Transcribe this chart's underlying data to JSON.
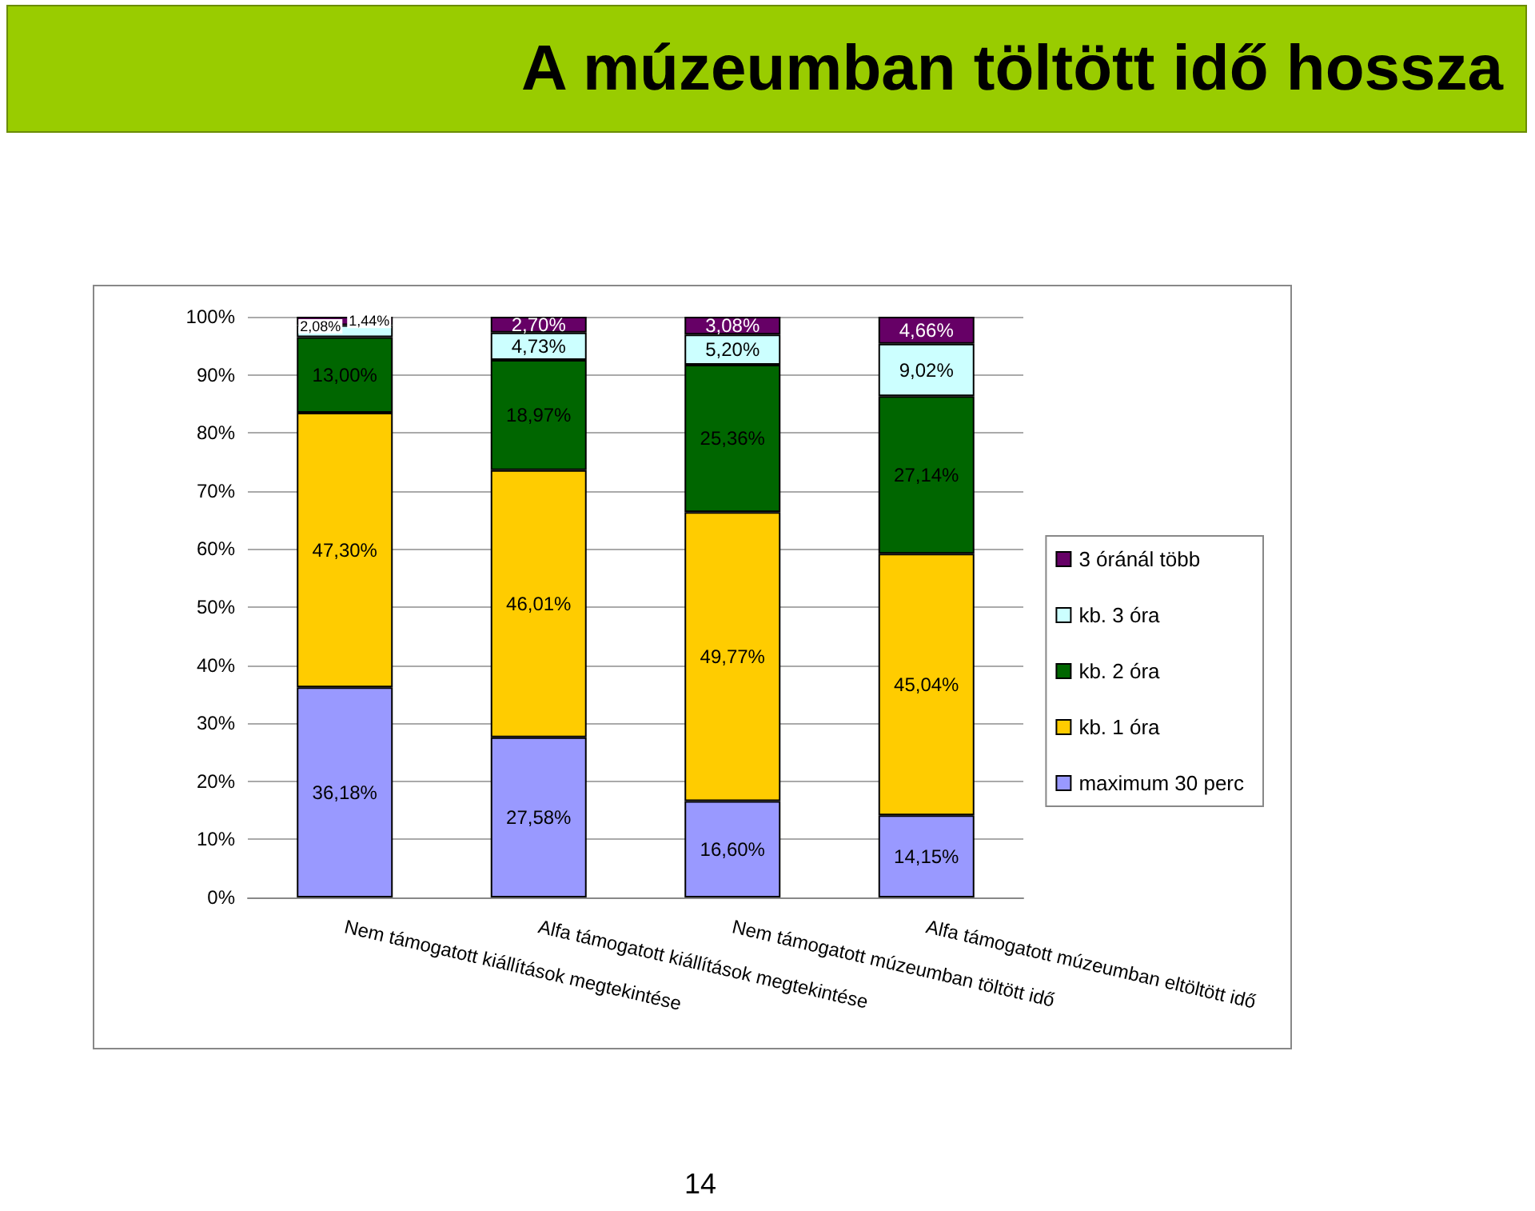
{
  "chart_data": {
    "type": "bar",
    "stacked": true,
    "title": "A múzeumban töltött idő hossza",
    "categories": [
      "Nem támogatott kiállítások megtekintése",
      "Alfa támogatott kiállítások megtekintése",
      "Nem támogatott múzeumban töltött idő",
      "Alfa támogatott múzeumban eltöltött idő"
    ],
    "series": [
      {
        "name": "maximum 30 perc",
        "color": "#9999ff",
        "values": [
          36.18,
          27.58,
          16.6,
          14.15
        ],
        "value_labels": [
          "36,18%",
          "27,58%",
          "16,60%",
          "14,15%"
        ]
      },
      {
        "name": "kb. 1 óra",
        "color": "#ffcc00",
        "values": [
          47.3,
          46.01,
          49.77,
          45.04
        ],
        "value_labels": [
          "47,30%",
          "46,01%",
          "49,77%",
          "45,04%"
        ]
      },
      {
        "name": "kb. 2 óra",
        "color": "#006600",
        "values": [
          13.0,
          18.97,
          25.36,
          27.14
        ],
        "value_labels": [
          "13,00%",
          "18,97%",
          "25,36%",
          "27,14%"
        ]
      },
      {
        "name": "kb. 3 óra",
        "color": "#ccffff",
        "values": [
          2.08,
          4.73,
          5.2,
          9.02
        ],
        "value_labels": [
          "2,08%",
          "4,73%",
          "5,20%",
          "9,02%"
        ]
      },
      {
        "name": "3 óránál több",
        "color": "#660066",
        "values": [
          1.44,
          2.7,
          3.08,
          4.66
        ],
        "value_labels": [
          "1,44%",
          "2,70%",
          "3,08%",
          "4,66%"
        ]
      }
    ],
    "ylim": [
      0,
      100
    ],
    "yticks": [
      {
        "value": 0,
        "label": "0%"
      },
      {
        "value": 10,
        "label": "10%"
      },
      {
        "value": 20,
        "label": "20%"
      },
      {
        "value": 30,
        "label": "30%"
      },
      {
        "value": 40,
        "label": "40%"
      },
      {
        "value": 50,
        "label": "50%"
      },
      {
        "value": 60,
        "label": "60%"
      },
      {
        "value": 70,
        "label": "70%"
      },
      {
        "value": 80,
        "label": "80%"
      },
      {
        "value": 90,
        "label": "90%"
      },
      {
        "value": 100,
        "label": "100%"
      }
    ],
    "grid": "y",
    "legend": "right",
    "annotations": [
      "14"
    ]
  }
}
